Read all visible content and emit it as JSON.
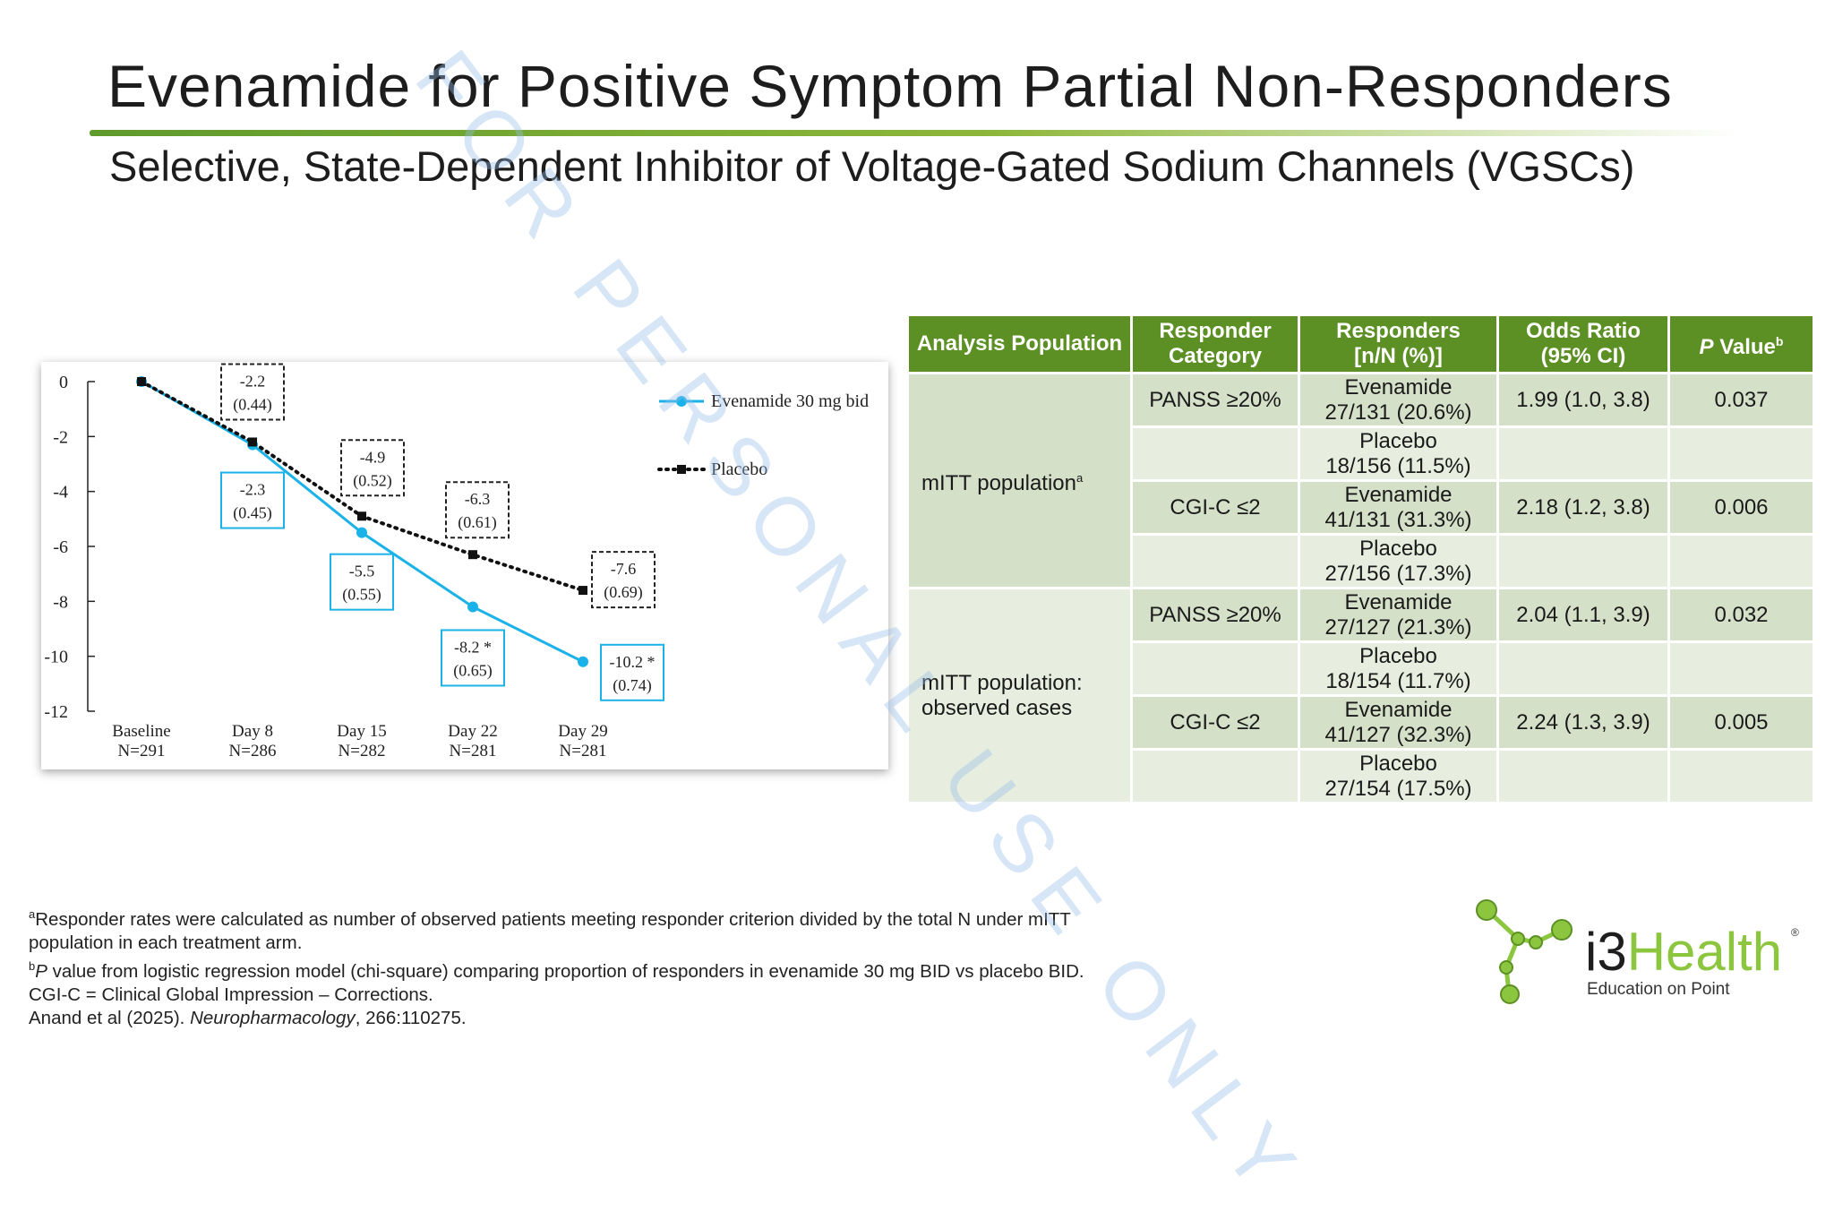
{
  "slide": {
    "title": "Evenamide for Positive Symptom Partial Non-Responders",
    "subtitle": "Selective, State-Dependent Inhibitor of Voltage-Gated Sodium Channels (VGSCs)",
    "watermark": "FOR PERSONAL USE ONLY"
  },
  "chart_data": {
    "type": "line",
    "categories": [
      "Baseline",
      "Day 8",
      "Day 15",
      "Day 22",
      "Day 29"
    ],
    "category_n": [
      "N=291",
      "N=286",
      "N=282",
      "N=281",
      "N=281"
    ],
    "ylim": [
      -12,
      0
    ],
    "yticks": [
      0,
      -2,
      -4,
      -6,
      -8,
      -10,
      -12
    ],
    "legend_position": "top-right",
    "series": [
      {
        "name": "Evenamide 30 mg bid",
        "color": "#1ab2e8",
        "style": "solid",
        "values": [
          0,
          -2.3,
          -5.5,
          -8.2,
          -10.2
        ],
        "labels": [
          "",
          "-2.3|(0.45)",
          "-5.5|(0.55)",
          "-8.2 *|(0.65)",
          "-10.2 *|(0.74)"
        ]
      },
      {
        "name": "Placebo",
        "color": "#111111",
        "style": "dotted",
        "values": [
          0,
          -2.2,
          -4.9,
          -6.3,
          -7.6
        ],
        "labels": [
          "",
          "-2.2|(0.44)",
          "-4.9|(0.52)",
          "-6.3|(0.61)",
          "-7.6|(0.69)"
        ]
      }
    ]
  },
  "table": {
    "headers": [
      "Analysis Population",
      "Responder Category",
      "Responders [n/N (%)]",
      "Odds Ratio (95% CI)",
      "P Value"
    ],
    "header_p_italic": "P",
    "header_p_rest": " Value",
    "header_p_sup": "b",
    "header_resp_1": "Responders",
    "header_resp_2": "[n/N (%)]",
    "header_cat_1": "Responder",
    "header_cat_2": "Category",
    "header_or_1": "Odds Ratio",
    "header_or_2": "(95% CI)",
    "populations": [
      {
        "label": "mITT population",
        "sup": "a",
        "label2": ""
      },
      {
        "label": "mITT population:",
        "sup": "",
        "label2": "observed cases"
      }
    ],
    "rows": [
      {
        "category": "PANSS ≥20%",
        "arm": "Evenamide",
        "resp": "27/131 (20.6%)",
        "or": "1.99 (1.0, 3.8)",
        "p": "0.037"
      },
      {
        "category": "",
        "arm": "Placebo",
        "resp": "18/156 (11.5%)",
        "or": "",
        "p": ""
      },
      {
        "category": "CGI-C ≤2",
        "arm": "Evenamide",
        "resp": "41/131 (31.3%)",
        "or": "2.18 (1.2, 3.8)",
        "p": "0.006"
      },
      {
        "category": "",
        "arm": "Placebo",
        "resp": "27/156 (17.3%)",
        "or": "",
        "p": ""
      },
      {
        "category": "PANSS ≥20%",
        "arm": "Evenamide",
        "resp": "27/127 (21.3%)",
        "or": "2.04 (1.1, 3.9)",
        "p": "0.032"
      },
      {
        "category": "",
        "arm": "Placebo",
        "resp": "18/154 (11.7%)",
        "or": "",
        "p": ""
      },
      {
        "category": "CGI-C ≤2",
        "arm": "Evenamide",
        "resp": "41/127 (32.3%)",
        "or": "2.24 (1.3, 3.9)",
        "p": "0.005"
      },
      {
        "category": "",
        "arm": "Placebo",
        "resp": "27/154 (17.5%)",
        "or": "",
        "p": ""
      }
    ]
  },
  "footnotes": {
    "a_sup": "a",
    "a_line1": "Responder rates were calculated as number of observed patients meeting responder criterion divided by the total N under mITT",
    "a_line2": "population in each treatment arm.",
    "b_sup": "b",
    "b_italic": "P",
    "b_rest": " value from logistic regression model (chi-square) comparing proportion of responders in evenamide 30 mg BID vs placebo BID.",
    "cgi": "CGI-C = Clinical Global Impression – Corrections.",
    "ref_pre": "Anand et al (2025). ",
    "ref_journal": "Neuropharmacology",
    "ref_post": ", 266:110275."
  },
  "logo": {
    "brand_i3": "i3",
    "brand_health": "Health",
    "reg": "®",
    "tagline": "Education on Point",
    "icon": "molecule-network-icon"
  }
}
